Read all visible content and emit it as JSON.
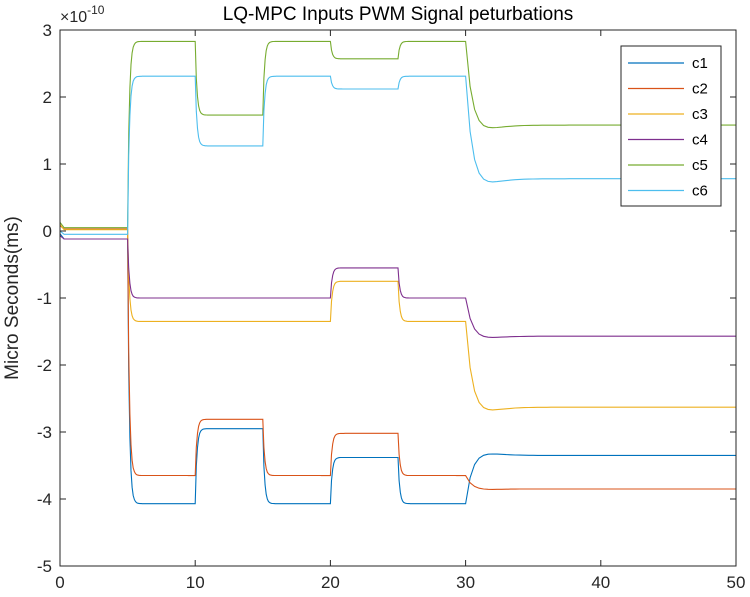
{
  "chart_data": {
    "type": "line",
    "title": "LQ-MPC Inputs PWM Signal peturbations",
    "xlabel": "",
    "ylabel": "Micro Seconds(ms)",
    "y_exponent_label": "×10",
    "y_exponent_power": "-10",
    "xlim": [
      0,
      50
    ],
    "ylim": [
      -5,
      3
    ],
    "xticks": [
      0,
      10,
      20,
      30,
      40,
      50
    ],
    "yticks": [
      -5,
      -4,
      -3,
      -2,
      -1,
      0,
      1,
      2,
      3
    ],
    "xtick_labels": [
      "0",
      "10",
      "20",
      "30",
      "40",
      "50"
    ],
    "ytick_labels": [
      "-5",
      "-4",
      "-3",
      "-2",
      "-1",
      "0",
      "1",
      "2",
      "3"
    ],
    "legend_position": "top-right",
    "series": [
      {
        "name": "c1",
        "color": "#0072BD",
        "levels": [
          -0.12,
          -4.07,
          -2.95,
          -4.07,
          -3.38,
          -4.07,
          -3.35
        ],
        "final_value": -3.35
      },
      {
        "name": "c2",
        "color": "#D95319",
        "levels": [
          0.03,
          -3.65,
          -2.81,
          -3.65,
          -3.02,
          -3.65,
          -3.85
        ],
        "final_value": -3.85
      },
      {
        "name": "c3",
        "color": "#EDB120",
        "levels": [
          0.02,
          -1.35,
          -1.35,
          -1.35,
          -0.75,
          -1.35,
          -2.63
        ],
        "final_value": -2.63
      },
      {
        "name": "c4",
        "color": "#7E2F8E",
        "levels": [
          -0.12,
          -1.0,
          -1.0,
          -1.0,
          -0.55,
          -1.0,
          -1.57
        ],
        "final_value": -1.57
      },
      {
        "name": "c5",
        "color": "#77AC30",
        "levels": [
          0.05,
          2.83,
          1.73,
          2.83,
          2.57,
          2.83,
          1.58
        ],
        "final_value": 1.58
      },
      {
        "name": "c6",
        "color": "#4DBEEE",
        "levels": [
          -0.05,
          2.31,
          1.27,
          2.31,
          2.12,
          2.31,
          0.78
        ],
        "final_value": 0.78
      }
    ],
    "segment_boundaries": [
      5,
      10,
      15,
      20,
      25,
      30,
      50
    ]
  }
}
